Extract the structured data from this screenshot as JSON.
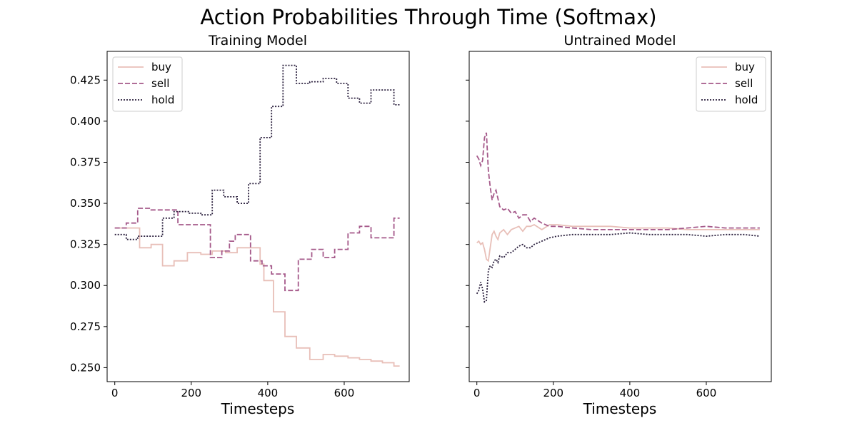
{
  "title": "Action Probabilities Through Time (Softmax)",
  "colors": {
    "buy": "#e8bfb8",
    "sell": "#a5598a",
    "hold": "#2a1f3d"
  },
  "chart_data": [
    {
      "type": "line",
      "title": "Training Model",
      "xlabel": "Timesteps",
      "ylabel": "",
      "xlim": [
        -20,
        770
      ],
      "ylim": [
        0.2415,
        0.4425
      ],
      "xticks": [
        0,
        200,
        400,
        600
      ],
      "yticks": [
        0.25,
        0.275,
        0.3,
        0.325,
        0.35,
        0.375,
        0.4,
        0.425
      ],
      "ytick_labels": [
        "0.250",
        "0.275",
        "0.300",
        "0.325",
        "0.350",
        "0.375",
        "0.400",
        "0.425"
      ],
      "legend_position": "upper left",
      "series": [
        {
          "name": "buy",
          "style": "solid",
          "x": [
            0,
            65,
            65,
            95,
            95,
            125,
            125,
            155,
            155,
            190,
            190,
            225,
            225,
            255,
            255,
            290,
            290,
            320,
            320,
            350,
            350,
            380,
            380,
            390,
            390,
            415,
            415,
            445,
            445,
            475,
            475,
            510,
            510,
            545,
            545,
            575,
            575,
            610,
            610,
            640,
            640,
            670,
            670,
            700,
            700,
            730,
            730,
            745
          ],
          "y": [
            0.335,
            0.335,
            0.323,
            0.323,
            0.325,
            0.325,
            0.312,
            0.312,
            0.315,
            0.315,
            0.32,
            0.32,
            0.319,
            0.319,
            0.321,
            0.321,
            0.32,
            0.32,
            0.323,
            0.323,
            0.323,
            0.323,
            0.313,
            0.313,
            0.303,
            0.303,
            0.284,
            0.284,
            0.269,
            0.269,
            0.262,
            0.262,
            0.255,
            0.255,
            0.258,
            0.258,
            0.257,
            0.257,
            0.256,
            0.256,
            0.255,
            0.255,
            0.254,
            0.254,
            0.253,
            0.253,
            0.251,
            0.251
          ]
        },
        {
          "name": "sell",
          "style": "dashed",
          "x": [
            0,
            30,
            30,
            60,
            60,
            95,
            95,
            125,
            125,
            165,
            165,
            190,
            190,
            250,
            250,
            280,
            280,
            300,
            300,
            315,
            315,
            345,
            345,
            355,
            355,
            385,
            385,
            410,
            410,
            445,
            445,
            480,
            480,
            500,
            500,
            515,
            515,
            545,
            545,
            575,
            575,
            610,
            610,
            640,
            640,
            670,
            670,
            700,
            700,
            730,
            730,
            740,
            740,
            745
          ],
          "y": [
            0.335,
            0.335,
            0.338,
            0.338,
            0.347,
            0.347,
            0.346,
            0.346,
            0.346,
            0.346,
            0.337,
            0.337,
            0.337,
            0.337,
            0.317,
            0.317,
            0.321,
            0.321,
            0.327,
            0.327,
            0.331,
            0.331,
            0.331,
            0.331,
            0.315,
            0.315,
            0.312,
            0.312,
            0.307,
            0.307,
            0.297,
            0.297,
            0.316,
            0.316,
            0.316,
            0.316,
            0.322,
            0.322,
            0.317,
            0.317,
            0.322,
            0.322,
            0.332,
            0.332,
            0.336,
            0.336,
            0.329,
            0.329,
            0.329,
            0.329,
            0.341,
            0.341,
            0.341,
            0.341
          ]
        },
        {
          "name": "hold",
          "style": "dotted",
          "x": [
            0,
            30,
            30,
            60,
            60,
            125,
            125,
            155,
            155,
            195,
            195,
            225,
            225,
            255,
            255,
            285,
            285,
            320,
            320,
            350,
            350,
            380,
            380,
            410,
            410,
            440,
            440,
            475,
            475,
            510,
            510,
            545,
            545,
            580,
            580,
            610,
            610,
            640,
            640,
            670,
            670,
            700,
            700,
            730,
            730,
            745
          ],
          "y": [
            0.331,
            0.331,
            0.328,
            0.328,
            0.33,
            0.33,
            0.341,
            0.341,
            0.345,
            0.345,
            0.344,
            0.344,
            0.343,
            0.343,
            0.358,
            0.358,
            0.354,
            0.354,
            0.35,
            0.35,
            0.362,
            0.362,
            0.39,
            0.39,
            0.409,
            0.409,
            0.434,
            0.434,
            0.423,
            0.423,
            0.424,
            0.424,
            0.426,
            0.426,
            0.423,
            0.423,
            0.414,
            0.414,
            0.411,
            0.411,
            0.419,
            0.419,
            0.419,
            0.419,
            0.41,
            0.41
          ]
        }
      ]
    },
    {
      "type": "line",
      "title": "Untrained Model",
      "xlabel": "Timesteps",
      "ylabel": "",
      "xlim": [
        -20,
        770
      ],
      "ylim": [
        0.2415,
        0.4425
      ],
      "xticks": [
        0,
        200,
        400,
        600
      ],
      "yticks": [
        0.25,
        0.275,
        0.3,
        0.325,
        0.35,
        0.375,
        0.4,
        0.425
      ],
      "legend_position": "upper right",
      "series": [
        {
          "name": "buy",
          "style": "solid",
          "x": [
            0,
            5,
            10,
            15,
            20,
            25,
            30,
            35,
            40,
            45,
            50,
            55,
            60,
            70,
            80,
            90,
            100,
            110,
            120,
            130,
            140,
            150,
            170,
            190,
            210,
            250,
            300,
            350,
            400,
            450,
            500,
            550,
            600,
            650,
            700,
            740
          ],
          "y": [
            0.326,
            0.327,
            0.325,
            0.326,
            0.322,
            0.316,
            0.315,
            0.323,
            0.331,
            0.333,
            0.33,
            0.328,
            0.332,
            0.334,
            0.331,
            0.334,
            0.335,
            0.336,
            0.333,
            0.336,
            0.336,
            0.337,
            0.334,
            0.337,
            0.337,
            0.336,
            0.336,
            0.336,
            0.335,
            0.335,
            0.335,
            0.334,
            0.334,
            0.334,
            0.334,
            0.334
          ]
        },
        {
          "name": "sell",
          "style": "dashed",
          "x": [
            0,
            5,
            10,
            15,
            20,
            25,
            30,
            35,
            40,
            45,
            50,
            55,
            60,
            70,
            80,
            90,
            100,
            110,
            120,
            130,
            140,
            150,
            170,
            190,
            210,
            250,
            300,
            350,
            400,
            450,
            500,
            550,
            600,
            650,
            700,
            740
          ],
          "y": [
            0.379,
            0.377,
            0.373,
            0.376,
            0.39,
            0.393,
            0.37,
            0.36,
            0.352,
            0.356,
            0.358,
            0.353,
            0.348,
            0.346,
            0.347,
            0.344,
            0.345,
            0.341,
            0.343,
            0.343,
            0.339,
            0.341,
            0.338,
            0.336,
            0.336,
            0.335,
            0.334,
            0.334,
            0.334,
            0.334,
            0.334,
            0.335,
            0.336,
            0.335,
            0.335,
            0.335
          ]
        },
        {
          "name": "hold",
          "style": "dotted",
          "x": [
            0,
            5,
            10,
            15,
            20,
            25,
            30,
            35,
            40,
            45,
            50,
            55,
            60,
            70,
            80,
            90,
            100,
            110,
            120,
            130,
            140,
            150,
            170,
            190,
            210,
            250,
            300,
            350,
            400,
            450,
            500,
            550,
            600,
            650,
            700,
            740
          ],
          "y": [
            0.295,
            0.297,
            0.302,
            0.298,
            0.29,
            0.291,
            0.309,
            0.312,
            0.311,
            0.315,
            0.316,
            0.314,
            0.318,
            0.317,
            0.32,
            0.32,
            0.322,
            0.324,
            0.325,
            0.323,
            0.323,
            0.325,
            0.327,
            0.329,
            0.33,
            0.331,
            0.331,
            0.331,
            0.332,
            0.331,
            0.331,
            0.331,
            0.33,
            0.331,
            0.331,
            0.33
          ]
        }
      ]
    }
  ]
}
